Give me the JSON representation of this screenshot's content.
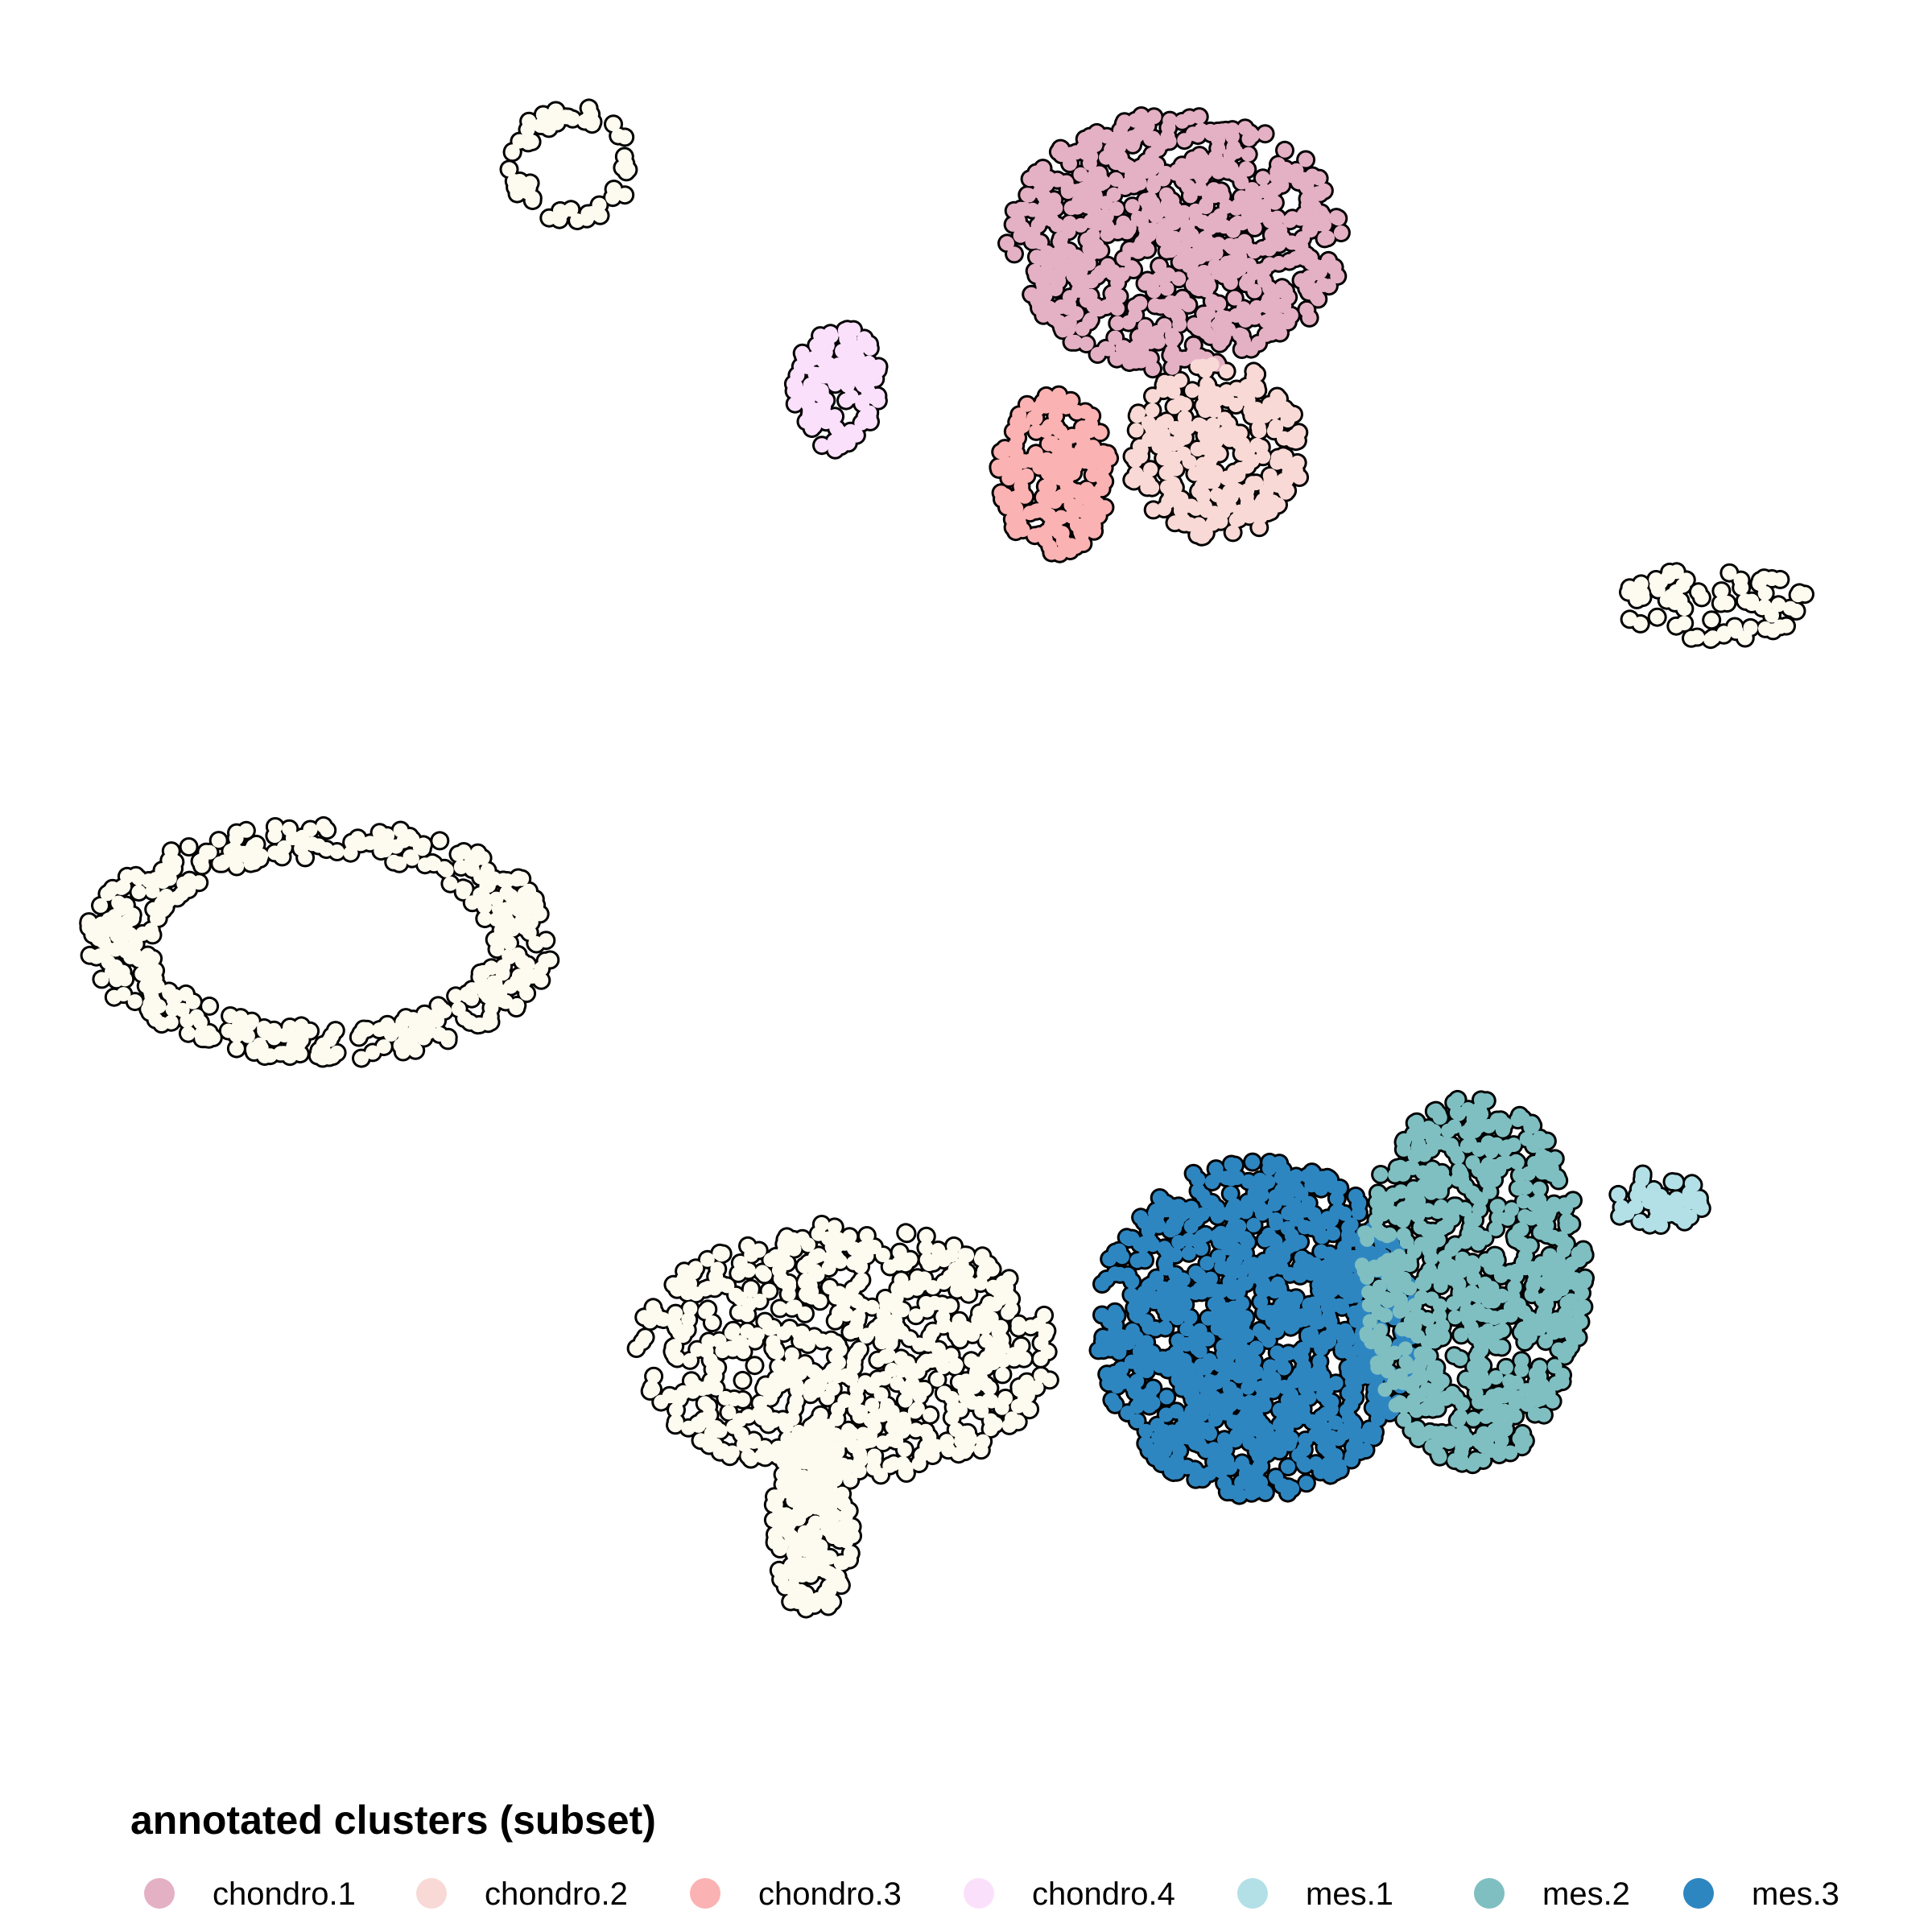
{
  "chart_data": {
    "type": "scatter",
    "title": "",
    "xlabel": "",
    "ylabel": "",
    "axes_visible": false,
    "grid": false,
    "legend": {
      "title": "annotated clusters (subset)",
      "placement": "bottom"
    },
    "outline_color": "#000000",
    "other_color": "#FDFAF0",
    "series": [
      {
        "name": "chondro.1",
        "color": "#E4B0C4"
      },
      {
        "name": "chondro.2",
        "color": "#F8D9D6"
      },
      {
        "name": "chondro.3",
        "color": "#FBB2B3"
      },
      {
        "name": "chondro.4",
        "color": "#FBE0FB"
      },
      {
        "name": "mes.1",
        "color": "#B2E0E6"
      },
      {
        "name": "mes.2",
        "color": "#7FBFC2"
      },
      {
        "name": "mes.3",
        "color": "#2E86C1"
      }
    ],
    "point_groups": [
      {
        "region": "top-left small ring",
        "series": "other",
        "cx": 710,
        "cy": 205,
        "rx": 75,
        "ry": 70,
        "n": 60,
        "ring": true
      },
      {
        "region": "top center main",
        "series": "chondro.1",
        "cx": 1460,
        "cy": 300,
        "rx": 210,
        "ry": 160,
        "n": 700,
        "ring": false
      },
      {
        "region": "top center lower-right",
        "series": "chondro.2",
        "cx": 1510,
        "cy": 560,
        "rx": 110,
        "ry": 110,
        "n": 260,
        "ring": false
      },
      {
        "region": "top center lower-left",
        "series": "chondro.3",
        "cx": 1310,
        "cy": 590,
        "rx": 70,
        "ry": 100,
        "n": 180,
        "ring": false
      },
      {
        "region": "top left lobe",
        "series": "chondro.4",
        "cx": 1040,
        "cy": 480,
        "rx": 55,
        "ry": 80,
        "n": 140,
        "ring": false
      },
      {
        "region": "right upper strand",
        "series": "other",
        "cx": 2130,
        "cy": 750,
        "rx": 120,
        "ry": 45,
        "n": 70,
        "ring": false
      },
      {
        "region": "left arc",
        "series": "other",
        "cx": 400,
        "cy": 1170,
        "rx": 280,
        "ry": 140,
        "n": 420,
        "ring": true
      },
      {
        "region": "central trunk",
        "series": "other",
        "cx": 1050,
        "cy": 1680,
        "rx": 260,
        "ry": 160,
        "n": 650,
        "ring": false
      },
      {
        "region": "lower stem",
        "series": "other",
        "cx": 1010,
        "cy": 1890,
        "rx": 50,
        "ry": 120,
        "n": 200,
        "ring": false
      },
      {
        "region": "right cluster blue",
        "series": "mes.3",
        "cx": 1560,
        "cy": 1650,
        "rx": 200,
        "ry": 210,
        "n": 900,
        "ring": false
      },
      {
        "region": "right cluster teal",
        "series": "mes.2",
        "cx": 1830,
        "cy": 1590,
        "rx": 140,
        "ry": 230,
        "n": 650,
        "ring": false
      },
      {
        "region": "right tip",
        "series": "mes.1",
        "cx": 2060,
        "cy": 1490,
        "rx": 60,
        "ry": 35,
        "n": 50,
        "ring": false
      }
    ]
  }
}
